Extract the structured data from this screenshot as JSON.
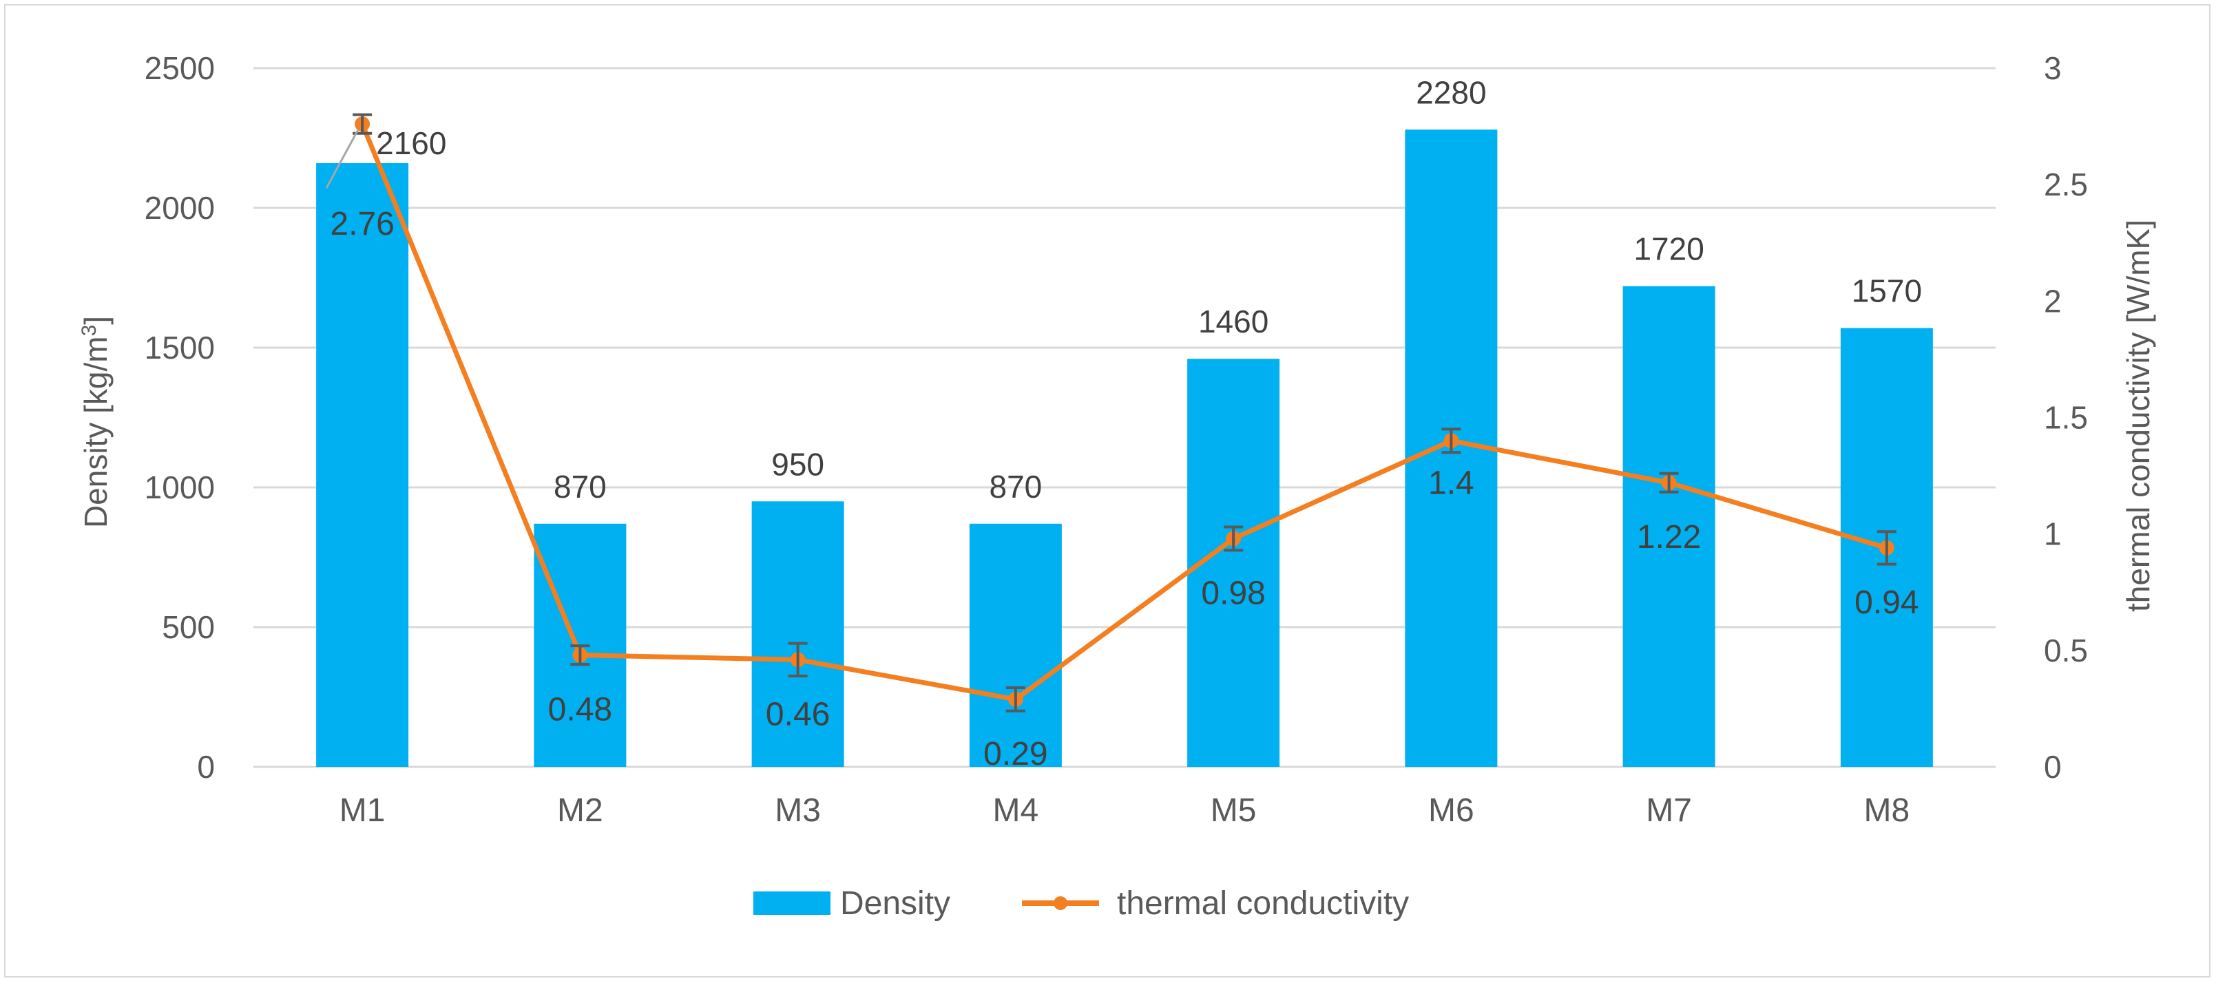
{
  "chart_data": {
    "type": "bar",
    "title": "",
    "categories": [
      "M1",
      "M2",
      "M3",
      "M4",
      "M5",
      "M6",
      "M7",
      "M8"
    ],
    "series": [
      {
        "name": "Density",
        "kind": "bar",
        "axis": "left",
        "color": "#00b0f0",
        "values": [
          2160,
          870,
          950,
          870,
          1460,
          2280,
          1720,
          1570
        ],
        "labels": [
          "2160",
          "870",
          "950",
          "870",
          "1460",
          "2280",
          "1720",
          "1570"
        ]
      },
      {
        "name": "thermal conductivity",
        "kind": "line",
        "axis": "right",
        "color": "#f47f20",
        "values": [
          2.76,
          0.48,
          0.46,
          0.29,
          0.98,
          1.4,
          1.22,
          0.94
        ],
        "error": [
          0.04,
          0.04,
          0.07,
          0.05,
          0.05,
          0.05,
          0.04,
          0.07
        ],
        "labels": [
          "2.76",
          "0.48",
          "0.46",
          "0.29",
          "0.98",
          "1.4",
          "1.22",
          "0.94"
        ]
      }
    ],
    "left_axis": {
      "label_main": "Density [kg/m",
      "label_sup": "3",
      "label_end": "]",
      "ylim": [
        0,
        2500
      ],
      "ticks": [
        "0",
        "500",
        "1000",
        "1500",
        "2000",
        "2500"
      ]
    },
    "right_axis": {
      "label": "thermal conductivity [W/mK]",
      "ylim": [
        0,
        3
      ],
      "ticks": [
        "0",
        "0.5",
        "1",
        "1.5",
        "2",
        "2.5",
        "3"
      ]
    },
    "grid": true,
    "legend": {
      "position": "bottom",
      "entries": [
        "Density",
        "thermal conductivity"
      ]
    },
    "colors": {
      "bar": "#00b0f0",
      "line": "#f47f20",
      "grid": "#d9d9d9",
      "error_bar": "#595959",
      "leader_line": "#a6a6a6"
    }
  }
}
